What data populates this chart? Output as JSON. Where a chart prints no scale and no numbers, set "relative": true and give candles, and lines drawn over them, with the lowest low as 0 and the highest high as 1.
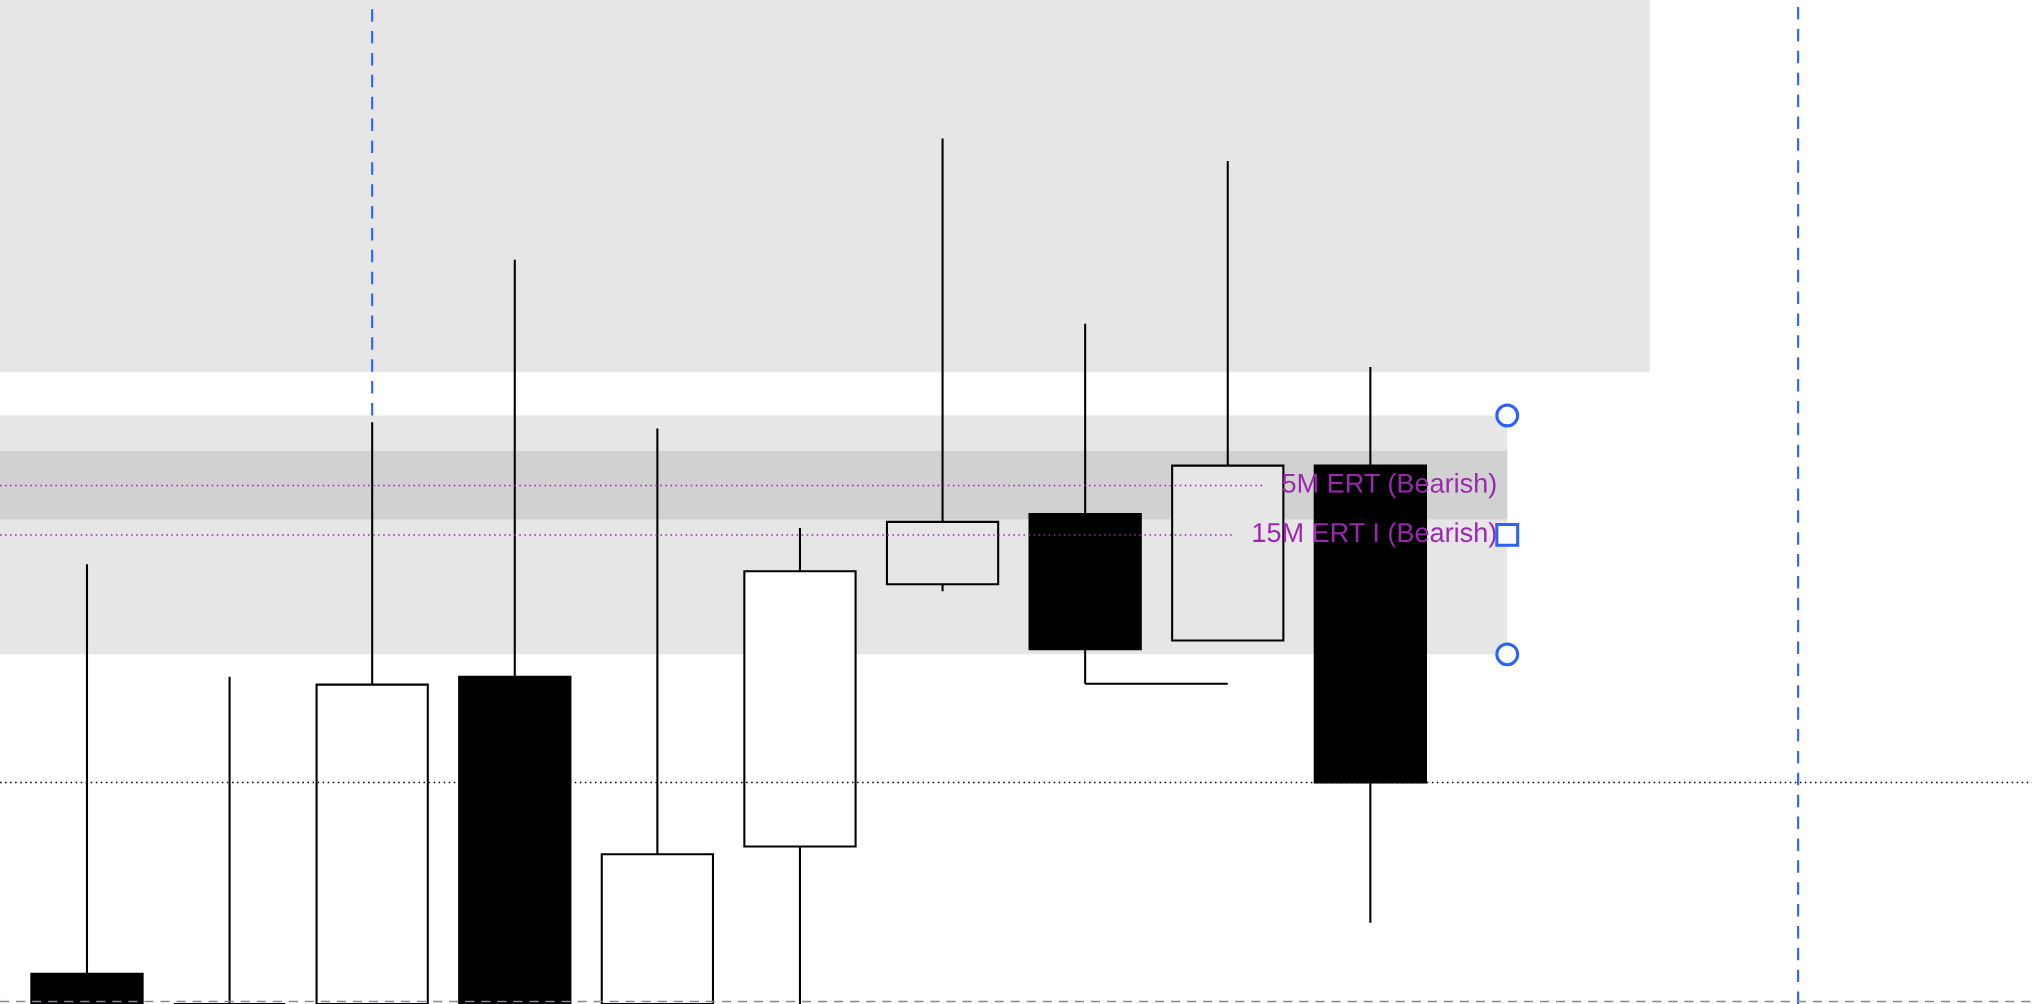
{
  "chart_data": {
    "type": "candlestick",
    "relative": true,
    "categories": [
      null,
      null,
      null,
      null,
      null,
      null,
      null,
      null,
      null,
      null
    ],
    "ohlc": [
      [
        0.035,
        0.508,
        0,
        0
      ],
      [
        0,
        0.378,
        0,
        0
      ],
      [
        0,
        0.672,
        0,
        0.369
      ],
      [
        0.378,
        0.86,
        0,
        0
      ],
      [
        0,
        0.665,
        0,
        0.173
      ],
      [
        0.182,
        0.55,
        0,
        0.5
      ],
      [
        0.485,
        1.0,
        0.477,
        0.557
      ],
      [
        0.566,
        0.786,
        0.37,
        0.41
      ],
      [
        0.42,
        0.974,
        0.42,
        0.622
      ],
      [
        0.622,
        0.736,
        0.094,
        0.256
      ]
    ],
    "colors": [
      "#000000",
      "#000000",
      "#ffffff",
      "#000000",
      "#ffffff",
      "#ffffff",
      "#e6e6e6",
      "#000000",
      "#e6e6e6",
      "#000000"
    ],
    "series": [
      {
        "type": "line",
        "color": "#000000",
        "values": [
          null,
          null,
          null,
          null,
          null,
          null,
          null,
          0.37,
          0.37,
          null
        ]
      }
    ],
    "ref_lines": [
      {
        "axis": "y",
        "value": 0.599,
        "label": "5M ERT (Bearish)",
        "color": "#9c27b0",
        "line_style": "dotted"
      },
      {
        "axis": "y",
        "value": 0.542,
        "label": "15M ERT I (Bearish)",
        "color": "#9c27b0",
        "line_style": "dotted"
      },
      {
        "axis": "y",
        "value": 0.256,
        "color": "#000000",
        "line_style": "dotted"
      },
      {
        "axis": "y",
        "value": 0.003,
        "color": "#868993",
        "line_style": "dashed"
      }
    ],
    "bands": [
      {
        "axis": "y",
        "from": 0.73,
        "to": 1.16,
        "color": "#e6e6e6"
      },
      {
        "axis": "y",
        "from": 0.404,
        "to": 0.68,
        "color": "#e6e6e6"
      },
      {
        "axis": "y",
        "from": 0.56,
        "to": 0.639,
        "color": "#d1d1d1"
      }
    ]
  }
}
